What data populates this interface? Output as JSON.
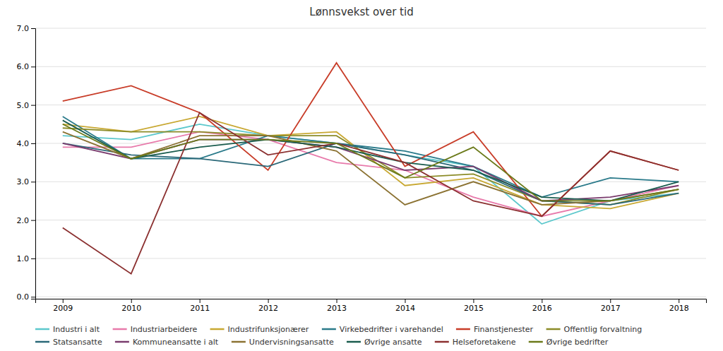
{
  "chart_data": {
    "type": "line",
    "title": "Lønnsvekst over tid",
    "x": [
      2009,
      2010,
      2011,
      2012,
      2013,
      2014,
      2015,
      2016,
      2017,
      2018
    ],
    "series": [
      {
        "name": "Industri i alt",
        "color": "#5cc8cc",
        "values": [
          4.2,
          4.1,
          4.5,
          4.2,
          4.0,
          3.7,
          3.4,
          1.9,
          2.5,
          2.7
        ]
      },
      {
        "name": "Industriarbeidere",
        "color": "#e87aab",
        "values": [
          3.9,
          3.9,
          4.3,
          4.1,
          3.5,
          3.3,
          2.6,
          2.1,
          2.5,
          2.9
        ]
      },
      {
        "name": "Industrifunksjonærer",
        "color": "#c8a832",
        "values": [
          4.5,
          4.3,
          4.7,
          4.2,
          4.3,
          2.9,
          3.1,
          2.4,
          2.3,
          2.7
        ]
      },
      {
        "name": "Virkebedrifter i varehandel",
        "color": "#2a7a8a",
        "values": [
          4.7,
          3.6,
          3.6,
          4.2,
          4.0,
          3.8,
          3.4,
          2.6,
          3.1,
          3.0
        ]
      },
      {
        "name": "Finanstjenester",
        "color": "#c83c28",
        "values": [
          5.1,
          5.5,
          4.8,
          3.3,
          6.1,
          3.4,
          4.3,
          2.1,
          3.8,
          3.3
        ]
      },
      {
        "name": "Offentlig forvaltning",
        "color": "#8c8c28",
        "values": [
          4.4,
          4.3,
          4.3,
          4.2,
          4.2,
          3.1,
          3.2,
          2.5,
          2.4,
          2.8
        ]
      },
      {
        "name": "Statsansatte",
        "color": "#2a6878",
        "values": [
          4.0,
          3.7,
          3.6,
          3.4,
          4.0,
          3.7,
          3.3,
          2.5,
          2.4,
          2.7
        ]
      },
      {
        "name": "Kommuneansatte i alt",
        "color": "#7a3c6e",
        "values": [
          4.0,
          3.6,
          4.1,
          4.1,
          3.9,
          3.3,
          3.4,
          2.5,
          2.6,
          2.9
        ]
      },
      {
        "name": "Undervisningsansatte",
        "color": "#8b7232",
        "values": [
          4.3,
          3.6,
          4.2,
          4.2,
          3.8,
          2.4,
          3.0,
          2.4,
          2.5,
          2.8
        ]
      },
      {
        "name": "Øvrige ansatte",
        "color": "#1a5c4e",
        "values": [
          4.6,
          3.6,
          3.9,
          4.1,
          3.9,
          3.5,
          3.3,
          2.6,
          2.5,
          3.0
        ]
      },
      {
        "name": "Helseforetakene",
        "color": "#8b3030",
        "values": [
          1.8,
          0.6,
          4.8,
          3.7,
          4.0,
          3.5,
          2.5,
          2.1,
          3.8,
          3.3
        ]
      },
      {
        "name": "Øvrige bedrifter",
        "color": "#6b7a1a",
        "values": [
          4.5,
          3.6,
          4.1,
          4.1,
          4.0,
          3.1,
          3.9,
          2.5,
          2.5,
          2.8
        ]
      }
    ],
    "xlim": [
      2008.6,
      2018.4
    ],
    "xticks": [
      2009,
      2010,
      2011,
      2012,
      2013,
      2014,
      2015,
      2016,
      2017,
      2018
    ],
    "ylim": [
      -0.05,
      7.0
    ],
    "yticks": [
      {
        "value": 0,
        "label": "0.0"
      },
      {
        "value": 1,
        "label": "1.0"
      },
      {
        "value": 2,
        "label": "2.0"
      },
      {
        "value": 3,
        "label": "3.0"
      },
      {
        "value": 4,
        "label": "4.0"
      },
      {
        "value": 5,
        "label": "5.0"
      },
      {
        "value": 6,
        "label": "6.0"
      },
      {
        "value": 7,
        "label": "7.0"
      }
    ],
    "grid": true,
    "legend": "bottom"
  }
}
